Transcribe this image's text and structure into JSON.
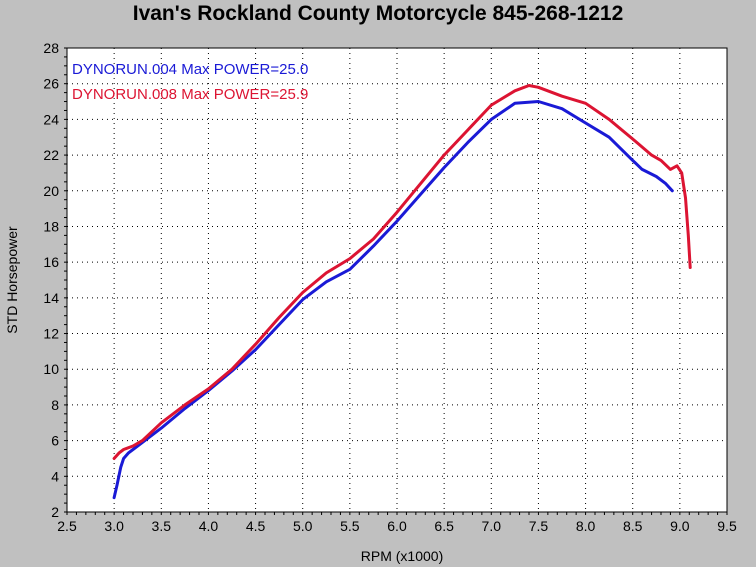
{
  "chart_data": {
    "type": "line",
    "title": "Ivan's Rockland County Motorcycle  845-268-1212",
    "xlabel": "RPM (x1000)",
    "ylabel": "STD Horsepower",
    "xlim": [
      2.5,
      9.5
    ],
    "ylim": [
      2,
      28
    ],
    "xticks": [
      "2.5",
      "3.0",
      "3.5",
      "4.0",
      "4.5",
      "5.0",
      "5.5",
      "6.0",
      "6.5",
      "7.0",
      "7.5",
      "8.0",
      "8.5",
      "9.0",
      "9.5"
    ],
    "yticks": [
      "2",
      "4",
      "6",
      "8",
      "10",
      "12",
      "14",
      "16",
      "18",
      "20",
      "22",
      "24",
      "26",
      "28"
    ],
    "grid": true,
    "legend_position": "top-left",
    "background": "#ffffff",
    "series": [
      {
        "name": "DYNORUN.004  Max POWER=25.0",
        "color": "#1a1ad6",
        "x": [
          3.0,
          3.03,
          3.07,
          3.1,
          3.15,
          3.2,
          3.3,
          3.5,
          3.75,
          4.0,
          4.25,
          4.5,
          4.75,
          5.0,
          5.25,
          5.5,
          5.75,
          6.0,
          6.25,
          6.5,
          6.75,
          7.0,
          7.25,
          7.5,
          7.75,
          8.0,
          8.25,
          8.5,
          8.6,
          8.75,
          8.85,
          8.92
        ],
        "y": [
          2.8,
          3.5,
          4.5,
          5.0,
          5.3,
          5.5,
          5.9,
          6.7,
          7.8,
          8.8,
          9.9,
          11.1,
          12.5,
          13.9,
          14.9,
          15.6,
          16.9,
          18.3,
          19.8,
          21.3,
          22.7,
          24.0,
          24.9,
          25.0,
          24.6,
          23.8,
          23.0,
          21.7,
          21.2,
          20.8,
          20.4,
          20.0
        ]
      },
      {
        "name": "DYNORUN.008  Max POWER=25.9",
        "color": "#dc1432",
        "x": [
          3.0,
          3.05,
          3.1,
          3.2,
          3.3,
          3.5,
          3.75,
          4.0,
          4.25,
          4.5,
          4.75,
          5.0,
          5.25,
          5.5,
          5.75,
          6.0,
          6.25,
          6.5,
          6.75,
          7.0,
          7.25,
          7.4,
          7.5,
          7.75,
          8.0,
          8.25,
          8.5,
          8.7,
          8.8,
          8.9,
          8.97,
          9.02,
          9.06,
          9.09,
          9.11
        ],
        "y": [
          5.0,
          5.3,
          5.5,
          5.7,
          6.0,
          7.0,
          8.0,
          8.9,
          10.0,
          11.4,
          12.9,
          14.3,
          15.4,
          16.2,
          17.3,
          18.8,
          20.4,
          22.0,
          23.4,
          24.8,
          25.6,
          25.9,
          25.8,
          25.3,
          24.9,
          24.0,
          22.9,
          22.0,
          21.7,
          21.2,
          21.4,
          21.0,
          19.6,
          17.5,
          15.7
        ]
      }
    ]
  }
}
